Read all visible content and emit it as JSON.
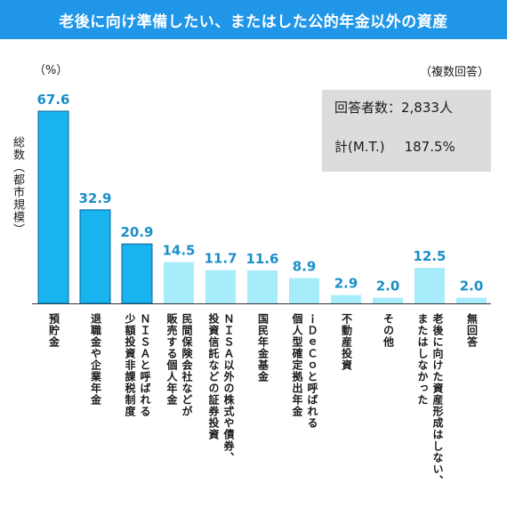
{
  "header": {
    "title": "老後に向け準備したい、またはした公的年金以外の資産"
  },
  "labels": {
    "unit": "（%）",
    "note": "（複数回答）",
    "y_title": "総数（都市規模）"
  },
  "info": {
    "respondents": "回答者数：2,833人",
    "total_label": "計(M.T.)",
    "total_value": "187.5%"
  },
  "colors": {
    "header": "#1f96e8",
    "top3": "#17b4f0",
    "rest": "#a6ecfb",
    "value_text": "#1a8fc8"
  },
  "chart_data": {
    "type": "bar",
    "title": "老後に向け準備したい、またはした公的年金以外の資産",
    "ylabel": "総数（都市規模）",
    "unit": "%",
    "ylim": [
      0,
      67.6
    ],
    "grid": false,
    "categories": [
      "預貯金",
      "退職金や企業年金",
      "ＮＩＳＡと呼ばれる\n少額投資非課税制度",
      "民間保険会社などが\n販売する個人年金",
      "ＮＩＳＡ以外の株式や債券、\n投資信託などの証券投資",
      "国民年金基金",
      "ｉＤｅＣｏと呼ばれる\n個人型確定拠出年金",
      "不動産投資",
      "その他",
      "老後に向けた資産形成はしない、\nまたはしなかった",
      "無回答"
    ],
    "values": [
      67.6,
      32.9,
      20.9,
      14.5,
      11.7,
      11.6,
      8.9,
      2.9,
      2.0,
      12.5,
      2.0
    ],
    "value_labels": [
      "67.6",
      "32.9",
      "20.9",
      "14.5",
      "11.7",
      "11.6",
      "8.9",
      "2.9",
      "2.0",
      "12.5",
      "2.0"
    ],
    "highlight": [
      true,
      true,
      true,
      false,
      false,
      false,
      false,
      false,
      false,
      false,
      false
    ]
  }
}
